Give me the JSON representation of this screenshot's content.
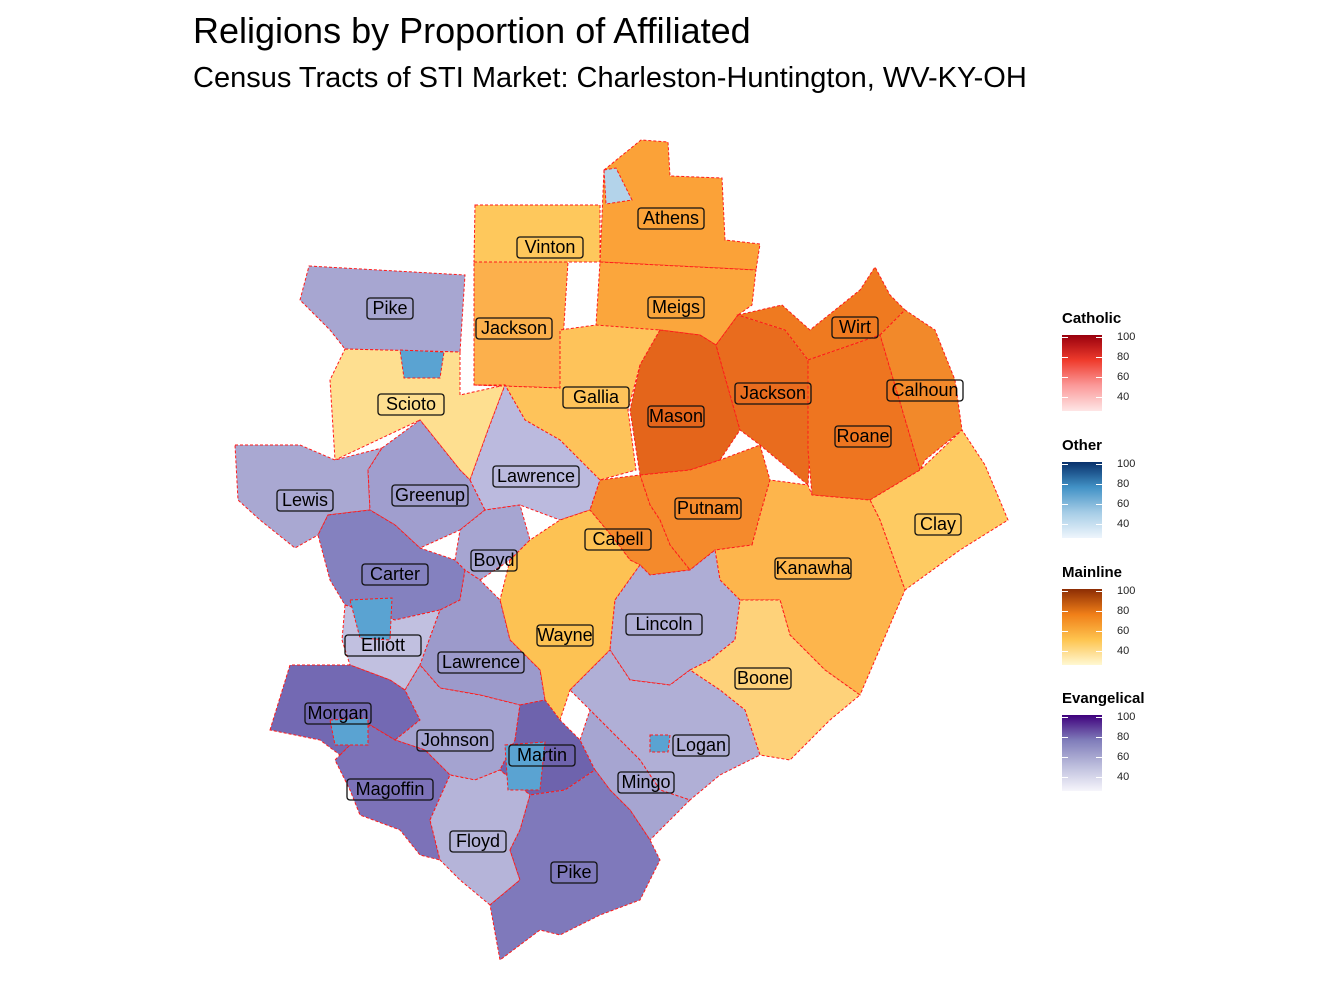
{
  "title": "Religions by Proportion of Affiliated",
  "subtitle": "Census Tracts of STI Market: Charleston-Huntington, WV-KY-OH",
  "legend": [
    {
      "name": "Catholic",
      "colors": [
        "#fee6e6",
        "#fb9a9a",
        "#ef3b2c",
        "#99000d"
      ],
      "ticks": [
        "100",
        "80",
        "60",
        "40"
      ]
    },
    {
      "name": "Other",
      "colors": [
        "#eef5fc",
        "#a6cde6",
        "#4292c6",
        "#08306b"
      ],
      "ticks": [
        "100",
        "80",
        "60",
        "40"
      ]
    },
    {
      "name": "Mainline",
      "colors": [
        "#fff8d2",
        "#fec44f",
        "#f07f18",
        "#8c2d04"
      ],
      "ticks": [
        "100",
        "80",
        "60",
        "40"
      ]
    },
    {
      "name": "Evangelical",
      "colors": [
        "#f6f5fb",
        "#bcbddc",
        "#807dba",
        "#3f007d"
      ],
      "ticks": [
        "100",
        "80",
        "60",
        "40"
      ]
    }
  ],
  "counties": [
    {
      "name": "Athens",
      "category": "Mainline",
      "color": "#fba238"
    },
    {
      "name": "Vinton",
      "category": "Mainline",
      "color": "#fec85c"
    },
    {
      "name": "Pike",
      "category": "Evangelical",
      "color": "#a7a6d1"
    },
    {
      "name": "Jackson",
      "category": "Mainline",
      "color": "#fcb04c"
    },
    {
      "name": "Meigs",
      "category": "Mainline",
      "color": "#fba63c"
    },
    {
      "name": "Wirt",
      "category": "Mainline",
      "color": "#ef7a20"
    },
    {
      "name": "Scioto",
      "category": "Mainline",
      "color": "#fedf90"
    },
    {
      "name": "Gallia",
      "category": "Mainline",
      "color": "#fec35a"
    },
    {
      "name": "Mason",
      "category": "Mainline",
      "color": "#e4651b"
    },
    {
      "name": "Jackson",
      "category": "Mainline",
      "color": "#e96c1e"
    },
    {
      "name": "Calhoun",
      "category": "Mainline",
      "color": "#f2892a"
    },
    {
      "name": "Roane",
      "category": "Mainline",
      "color": "#ee7520"
    },
    {
      "name": "Lewis",
      "category": "Evangelical",
      "color": "#a9a8d2"
    },
    {
      "name": "Greenup",
      "category": "Evangelical",
      "color": "#a09ece"
    },
    {
      "name": "Lawrence",
      "category": "Evangelical",
      "color": "#bbbade"
    },
    {
      "name": "Putnam",
      "category": "Mainline",
      "color": "#f58a2c"
    },
    {
      "name": "Cabell",
      "category": "Mainline",
      "color": "#f48a2c"
    },
    {
      "name": "Clay",
      "category": "Mainline",
      "color": "#fecb62"
    },
    {
      "name": "Carter",
      "category": "Evangelical",
      "color": "#8481bf"
    },
    {
      "name": "Boyd",
      "category": "Evangelical",
      "color": "#a6a5d1"
    },
    {
      "name": "Kanawha",
      "category": "Mainline",
      "color": "#fdb54c"
    },
    {
      "name": "Elliott",
      "category": "Evangelical",
      "color": "#c1c0e0"
    },
    {
      "name": "Wayne",
      "category": "Mainline",
      "color": "#fdc253"
    },
    {
      "name": "Lincoln",
      "category": "Evangelical",
      "color": "#aeadd5"
    },
    {
      "name": "Lawrence",
      "category": "Evangelical",
      "color": "#9c9acb"
    },
    {
      "name": "Boone",
      "category": "Mainline",
      "color": "#fed27a"
    },
    {
      "name": "Morgan",
      "category": "Evangelical",
      "color": "#7369b3"
    },
    {
      "name": "Johnson",
      "category": "Evangelical",
      "color": "#a4a3d0"
    },
    {
      "name": "Martin",
      "category": "Evangelical",
      "color": "#6e63ad"
    },
    {
      "name": "Logan",
      "category": "Evangelical",
      "color": "#b0afd6"
    },
    {
      "name": "Magoffin",
      "category": "Evangelical",
      "color": "#7c72b8"
    },
    {
      "name": "Mingo",
      "category": "Evangelical",
      "color": "#a6a5d1"
    },
    {
      "name": "Floyd",
      "category": "Evangelical",
      "color": "#b5b4d9"
    },
    {
      "name": "Pike",
      "category": "Evangelical",
      "color": "#7f79bb"
    }
  ]
}
